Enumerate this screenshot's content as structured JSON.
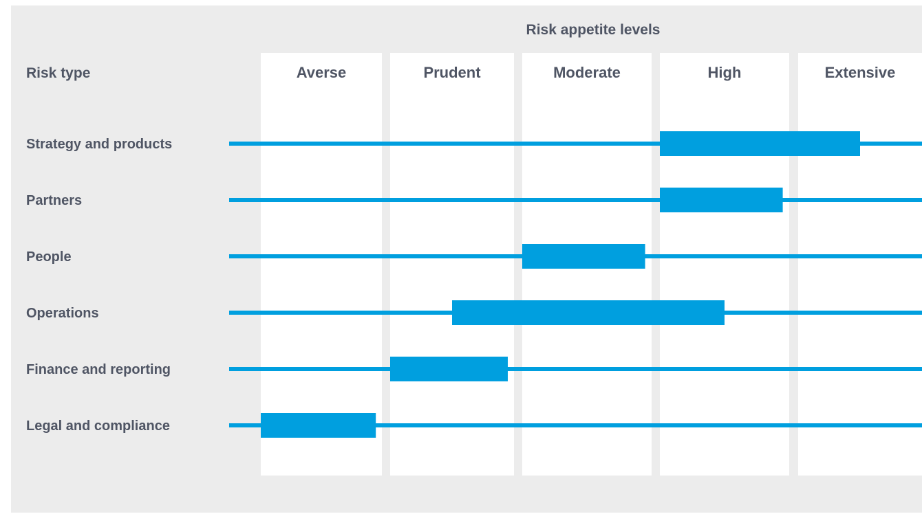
{
  "chart_data": {
    "type": "range-bar",
    "title": "Risk appetite levels",
    "row_header": "Risk type",
    "levels": [
      "Averse",
      "Prudent",
      "Moderate",
      "High",
      "Extensive"
    ],
    "rows": [
      {
        "label": "Strategy and products",
        "from": "High",
        "to": "Extensive",
        "start": 4.0,
        "end": 5.5
      },
      {
        "label": "Partners",
        "from": "High",
        "to": "High",
        "start": 4.0,
        "end": 4.95
      },
      {
        "label": "People",
        "from": "Moderate",
        "to": "Moderate",
        "start": 3.0,
        "end": 3.95
      },
      {
        "label": "Operations",
        "from": "Prudent",
        "to": "High",
        "start": 2.5,
        "end": 4.5
      },
      {
        "label": "Finance and reporting",
        "from": "Prudent",
        "to": "Prudent",
        "start": 2.0,
        "end": 2.95
      },
      {
        "label": "Legal and compliance",
        "from": "Averse",
        "to": "Averse",
        "start": 1.0,
        "end": 1.95
      }
    ],
    "grid": false,
    "legend": "none"
  },
  "colors": {
    "panel_background": "#ececec",
    "column_background": "#ffffff",
    "bar": "#009fdf",
    "text": "#4f5564"
  }
}
